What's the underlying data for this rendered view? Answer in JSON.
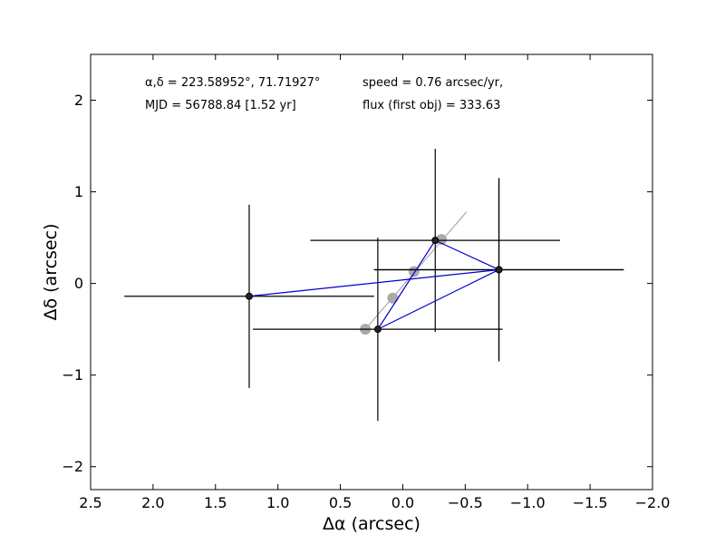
{
  "chart_data": {
    "type": "scatter",
    "xlabel": "Δα (arcsec)",
    "ylabel": "Δδ (arcsec)",
    "xlim": [
      2.5,
      -2.0
    ],
    "ylim": [
      -2.25,
      2.5
    ],
    "x_ticks": [
      {
        "value": 2.5,
        "label": "2.5"
      },
      {
        "value": 2.0,
        "label": "2.0"
      },
      {
        "value": 1.5,
        "label": "1.5"
      },
      {
        "value": 1.0,
        "label": "1.0"
      },
      {
        "value": 0.5,
        "label": "0.5"
      },
      {
        "value": 0.0,
        "label": "0.0"
      },
      {
        "value": -0.5,
        "label": "−0.5"
      },
      {
        "value": -1.0,
        "label": "−1.0"
      },
      {
        "value": -1.5,
        "label": "−1.5"
      },
      {
        "value": -2.0,
        "label": "−2.0"
      }
    ],
    "y_ticks": [
      {
        "value": 2,
        "label": "2"
      },
      {
        "value": 1,
        "label": "1"
      },
      {
        "value": 0,
        "label": "0"
      },
      {
        "value": -1,
        "label": "−1"
      },
      {
        "value": -2,
        "label": "−2"
      }
    ],
    "grid": false,
    "series": [
      {
        "kind": "observed_points_with_errors",
        "color": "#000000",
        "line_color": "#0000cc",
        "points": [
          {
            "x": 1.23,
            "y": -0.14,
            "xerr": 1.0,
            "yerr": 1.0
          },
          {
            "x": -0.77,
            "y": 0.15,
            "xerr": 1.0,
            "yerr": 1.0
          },
          {
            "x": 0.2,
            "y": -0.5,
            "xerr": 1.0,
            "yerr": 1.0
          },
          {
            "x": -0.26,
            "y": 0.47,
            "xerr": 1.0,
            "yerr": 1.0
          },
          {
            "x": -0.77,
            "y": 0.15,
            "xerr": 1.0,
            "yerr": 1.0
          }
        ]
      },
      {
        "kind": "model_track",
        "color": "#aaaaaa",
        "line": [
          {
            "x": 0.3,
            "y": -0.5
          },
          {
            "x": -0.51,
            "y": 0.78
          }
        ],
        "points": [
          {
            "x": 0.3,
            "y": -0.5
          },
          {
            "x": 0.08,
            "y": -0.16
          },
          {
            "x": -0.09,
            "y": 0.13
          },
          {
            "x": -0.31,
            "y": 0.48
          }
        ]
      }
    ],
    "annotations": {
      "coords": "α,δ = 223.58952°, 71.71927°",
      "mjd": "MJD = 56788.84 [1.52 yr]",
      "speed": "speed = 0.76 arcsec/yr,",
      "flux": "flux (first obj) = 333.63"
    }
  }
}
